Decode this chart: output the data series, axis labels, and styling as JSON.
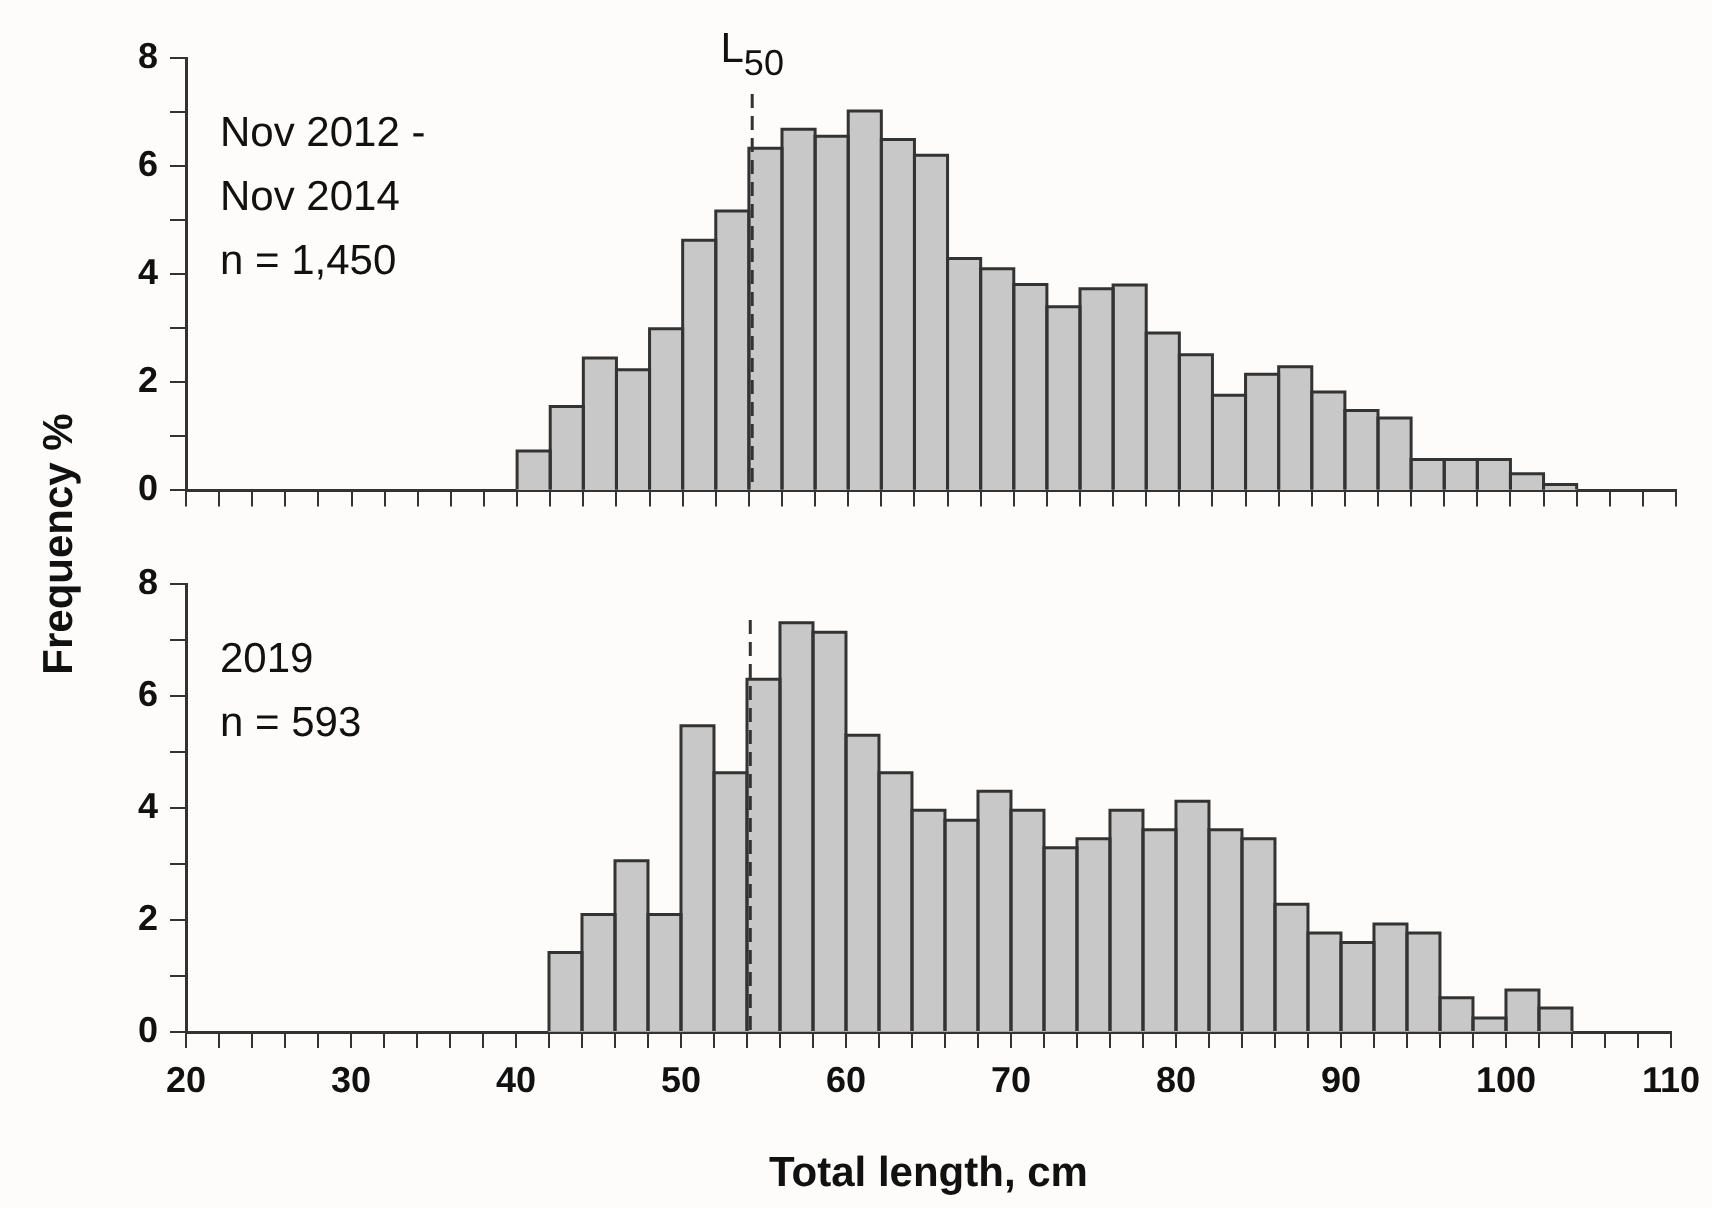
{
  "chart_data": [
    {
      "type": "histogram",
      "ylabel": "Frequency %",
      "color": "#c8c8c8",
      "bins": [
        40,
        42,
        44,
        46,
        48,
        50,
        52,
        54,
        56,
        58,
        60,
        62,
        64,
        66,
        68,
        70,
        72,
        74,
        76,
        78,
        80,
        82,
        84,
        86,
        88,
        90,
        92,
        94,
        96,
        98,
        100,
        102,
        104
      ],
      "values": [
        0.73,
        1.55,
        2.45,
        2.23,
        2.99,
        4.63,
        5.17,
        6.33,
        6.68,
        6.55,
        7.02,
        6.49,
        6.2,
        4.29,
        4.1,
        3.81,
        3.4,
        3.73,
        3.8,
        2.91,
        2.51,
        1.76,
        2.15,
        2.29,
        1.82,
        1.48,
        1.34,
        0.57,
        0.57,
        0.57,
        0.31,
        0.11
      ],
      "xlim": [
        20,
        110
      ],
      "xticks": [
        20,
        {
          "value": 22,
          "label": null
        },
        {
          "value": 24,
          "label": null
        },
        {
          "value": 26,
          "label": null
        },
        {
          "value": 28,
          "label": null
        },
        30,
        {
          "value": 32,
          "label": null
        },
        {
          "value": 34,
          "label": null
        },
        {
          "value": 36,
          "label": null
        },
        {
          "value": 38,
          "label": null
        },
        40,
        {
          "value": 42,
          "label": null
        },
        {
          "value": 44,
          "label": null
        },
        {
          "value": 46,
          "label": null
        },
        {
          "value": 48,
          "label": null
        },
        50,
        {
          "value": 52,
          "label": null
        },
        {
          "value": 54,
          "label": null
        },
        {
          "value": 56,
          "label": null
        },
        {
          "value": 58,
          "label": null
        },
        60,
        {
          "value": 62,
          "label": null
        },
        {
          "value": 64,
          "label": null
        },
        {
          "value": 66,
          "label": null
        },
        {
          "value": 68,
          "label": null
        },
        70,
        {
          "value": 72,
          "label": null
        },
        {
          "value": 74,
          "label": null
        },
        {
          "value": 76,
          "label": null
        },
        {
          "value": 78,
          "label": null
        },
        80,
        {
          "value": 82,
          "label": null
        },
        {
          "value": 84,
          "label": null
        },
        {
          "value": 86,
          "label": null
        },
        {
          "value": 88,
          "label": null
        },
        90,
        {
          "value": 92,
          "label": null
        },
        {
          "value": 94,
          "label": null
        },
        {
          "value": 96,
          "label": null
        },
        {
          "value": 98,
          "label": null
        },
        100,
        {
          "value": 102,
          "label": null
        },
        {
          "value": 104,
          "label": null
        },
        {
          "value": 106,
          "label": null
        },
        {
          "value": 108,
          "label": null
        },
        110
      ],
      "ylim": [
        0,
        8
      ],
      "yticks": [
        0,
        {
          "value": 1,
          "label": null
        },
        2,
        {
          "value": 3,
          "label": null
        },
        4,
        {
          "value": 5,
          "label": null
        },
        6,
        {
          "value": 7,
          "label": null
        },
        8
      ],
      "tick_labels": "y",
      "grid": false,
      "legend": false,
      "ref_lines": [
        {
          "axis": "x",
          "value": 54.2,
          "label": "L$_{50}$",
          "line_style": "dashed",
          "color": "#333333"
        }
      ],
      "annotations": [
        "Nov 2012 -",
        "Nov 2014",
        "n = 1,450"
      ]
    },
    {
      "type": "histogram",
      "xlabel": "Total length, cm",
      "color": "#c8c8c8",
      "bins": [
        42,
        44,
        46,
        48,
        50,
        52,
        54,
        56,
        58,
        60,
        62,
        64,
        66,
        68,
        70,
        72,
        74,
        76,
        78,
        80,
        82,
        84,
        86,
        88,
        90,
        92,
        94,
        96,
        98,
        100,
        102,
        104
      ],
      "values": [
        1.42,
        2.1,
        3.06,
        2.1,
        5.47,
        4.63,
        6.3,
        7.31,
        7.14,
        5.3,
        4.63,
        3.96,
        3.78,
        4.3,
        3.96,
        3.29,
        3.45,
        3.96,
        3.61,
        4.12,
        3.61,
        3.45,
        2.28,
        1.77,
        1.6,
        1.93,
        1.77,
        0.61,
        0.25,
        0.75,
        0.43
      ],
      "xlim": [
        20,
        110
      ],
      "xticks": [
        20,
        {
          "value": 22,
          "label": null
        },
        {
          "value": 24,
          "label": null
        },
        {
          "value": 26,
          "label": null
        },
        {
          "value": 28,
          "label": null
        },
        30,
        {
          "value": 32,
          "label": null
        },
        {
          "value": 34,
          "label": null
        },
        {
          "value": 36,
          "label": null
        },
        {
          "value": 38,
          "label": null
        },
        40,
        {
          "value": 42,
          "label": null
        },
        {
          "value": 44,
          "label": null
        },
        {
          "value": 46,
          "label": null
        },
        {
          "value": 48,
          "label": null
        },
        50,
        {
          "value": 52,
          "label": null
        },
        {
          "value": 54,
          "label": null
        },
        {
          "value": 56,
          "label": null
        },
        {
          "value": 58,
          "label": null
        },
        60,
        {
          "value": 62,
          "label": null
        },
        {
          "value": 64,
          "label": null
        },
        {
          "value": 66,
          "label": null
        },
        {
          "value": 68,
          "label": null
        },
        70,
        {
          "value": 72,
          "label": null
        },
        {
          "value": 74,
          "label": null
        },
        {
          "value": 76,
          "label": null
        },
        {
          "value": 78,
          "label": null
        },
        80,
        {
          "value": 82,
          "label": null
        },
        {
          "value": 84,
          "label": null
        },
        {
          "value": 86,
          "label": null
        },
        {
          "value": 88,
          "label": null
        },
        90,
        {
          "value": 92,
          "label": null
        },
        {
          "value": 94,
          "label": null
        },
        {
          "value": 96,
          "label": null
        },
        {
          "value": 98,
          "label": null
        },
        100,
        {
          "value": 102,
          "label": null
        },
        {
          "value": 104,
          "label": null
        },
        {
          "value": 106,
          "label": null
        },
        {
          "value": 108,
          "label": null
        },
        110
      ],
      "ylim": [
        0,
        8
      ],
      "yticks": [
        0,
        {
          "value": 1,
          "label": null
        },
        2,
        {
          "value": 3,
          "label": null
        },
        4,
        {
          "value": 5,
          "label": null
        },
        6,
        {
          "value": 7,
          "label": null
        },
        8
      ],
      "grid": false,
      "legend": false,
      "ref_lines": [
        {
          "axis": "x",
          "value": 54.2,
          "label": null,
          "line_style": "dashed",
          "color": "#333333"
        }
      ],
      "annotations": [
        "2019",
        "n = 593"
      ]
    }
  ]
}
